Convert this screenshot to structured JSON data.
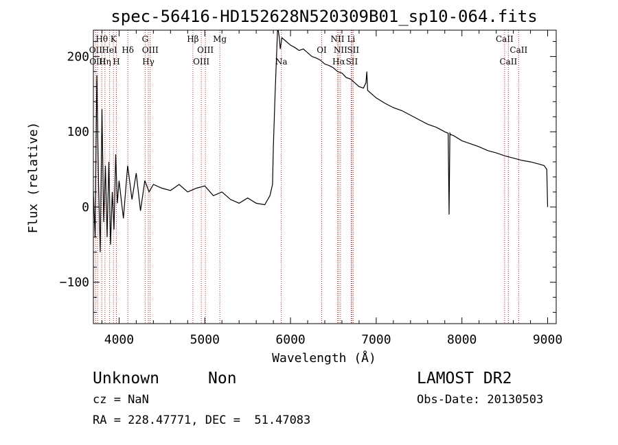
{
  "chart_data": {
    "type": "line",
    "title": "spec-56416-HD152628N520309B01_sp10-064.fits",
    "xlabel": "Wavelength (Å)",
    "ylabel": "Flux (relative)",
    "xlim": [
      3700,
      9100
    ],
    "ylim": [
      -155,
      235
    ],
    "xticks": [
      4000,
      5000,
      6000,
      7000,
      8000,
      9000
    ],
    "yticks": [
      -100,
      0,
      100,
      200
    ],
    "xtick_labels": [
      "4000",
      "5000",
      "6000",
      "7000",
      "8000",
      "9000"
    ],
    "ytick_labels": [
      "−100",
      "0",
      "100",
      "200"
    ],
    "grid": false,
    "line_color": "#000000",
    "marker_color": "#b22222",
    "series": [
      {
        "x": [
          3700,
          3720,
          3740,
          3760,
          3780,
          3800,
          3820,
          3840,
          3860,
          3880,
          3900,
          3920,
          3940,
          3960,
          3980,
          4000,
          4050,
          4100,
          4150,
          4200,
          4250,
          4300,
          4350,
          4400,
          4500,
          4600,
          4700,
          4800,
          4900,
          5000,
          5100,
          5200,
          5300,
          5400,
          5500,
          5600,
          5700,
          5760,
          5790,
          5800,
          5820,
          5850,
          5870,
          5880,
          5900,
          5950,
          6000,
          6050,
          6100,
          6150,
          6200,
          6250,
          6300,
          6350,
          6400,
          6450,
          6500,
          6550,
          6600,
          6650,
          6700,
          6750,
          6800,
          6850,
          6880,
          6890,
          6900,
          6950,
          7000,
          7100,
          7200,
          7300,
          7400,
          7500,
          7600,
          7700,
          7800,
          7840,
          7850,
          7860,
          7870,
          7900,
          8000,
          8100,
          8200,
          8300,
          8400,
          8500,
          8600,
          8700,
          8800,
          8900,
          8960,
          8990,
          9000
        ],
        "values": [
          20,
          -40,
          175,
          30,
          -60,
          130,
          -20,
          55,
          -40,
          60,
          -50,
          20,
          -30,
          70,
          5,
          35,
          -15,
          55,
          10,
          45,
          -5,
          35,
          20,
          30,
          25,
          22,
          30,
          20,
          25,
          28,
          15,
          20,
          10,
          5,
          12,
          5,
          3,
          15,
          30,
          80,
          150,
          240,
          225,
          210,
          225,
          220,
          215,
          212,
          208,
          210,
          205,
          200,
          198,
          195,
          190,
          188,
          185,
          180,
          178,
          172,
          170,
          165,
          160,
          158,
          165,
          180,
          155,
          150,
          145,
          138,
          132,
          128,
          122,
          116,
          110,
          106,
          100,
          98,
          -10,
          98,
          96,
          95,
          88,
          84,
          80,
          75,
          72,
          68,
          65,
          62,
          60,
          57,
          55,
          50,
          0
        ]
      }
    ],
    "line_markers": [
      {
        "wavelength": 3727,
        "label": "OII",
        "row": 1
      },
      {
        "wavelength": 3750,
        "label": "OIII",
        "row": 2
      },
      {
        "wavelength": 3798,
        "label": "Hθ",
        "row": 0
      },
      {
        "wavelength": 3835,
        "label": "Hη",
        "row": 2
      },
      {
        "wavelength": 3889,
        "label": "HeI",
        "row": 1
      },
      {
        "wavelength": 3934,
        "label": "K",
        "row": 0
      },
      {
        "wavelength": 3968,
        "label": "H",
        "row": 2
      },
      {
        "wavelength": 4102,
        "label": "Hδ",
        "row": 1
      },
      {
        "wavelength": 4304,
        "label": "G",
        "row": 0
      },
      {
        "wavelength": 4341,
        "label": "Hγ",
        "row": 2
      },
      {
        "wavelength": 4363,
        "label": "OIII",
        "row": 1
      },
      {
        "wavelength": 4861,
        "label": "Hβ",
        "row": 0
      },
      {
        "wavelength": 4959,
        "label": "OIII",
        "row": 2
      },
      {
        "wavelength": 5007,
        "label": "OIII",
        "row": 1
      },
      {
        "wavelength": 5175,
        "label": "Mg",
        "row": 0
      },
      {
        "wavelength": 5893,
        "label": "Na",
        "row": 2
      },
      {
        "wavelength": 6364,
        "label": "OI",
        "row": 1
      },
      {
        "wavelength": 6548,
        "label": "NII",
        "row": 0
      },
      {
        "wavelength": 6563,
        "label": "Hα",
        "row": 2
      },
      {
        "wavelength": 6583,
        "label": "NII",
        "row": 1
      },
      {
        "wavelength": 6708,
        "label": "Li",
        "row": 0
      },
      {
        "wavelength": 6716,
        "label": "SII",
        "row": 2
      },
      {
        "wavelength": 6731,
        "label": "SII",
        "row": 1
      },
      {
        "wavelength": 8498,
        "label": "CaII",
        "row": 0
      },
      {
        "wavelength": 8542,
        "label": "CaII",
        "row": 2
      },
      {
        "wavelength": 8662,
        "label": "CaII",
        "row": 1
      }
    ]
  },
  "info": {
    "class_label": "Unknown",
    "subclass_label": "Non",
    "survey": "LAMOST DR2",
    "redshift": "cz = NaN",
    "obs_date": "Obs-Date: 20130503",
    "coords": "RA = 228.47771, DEC =  51.47083"
  }
}
